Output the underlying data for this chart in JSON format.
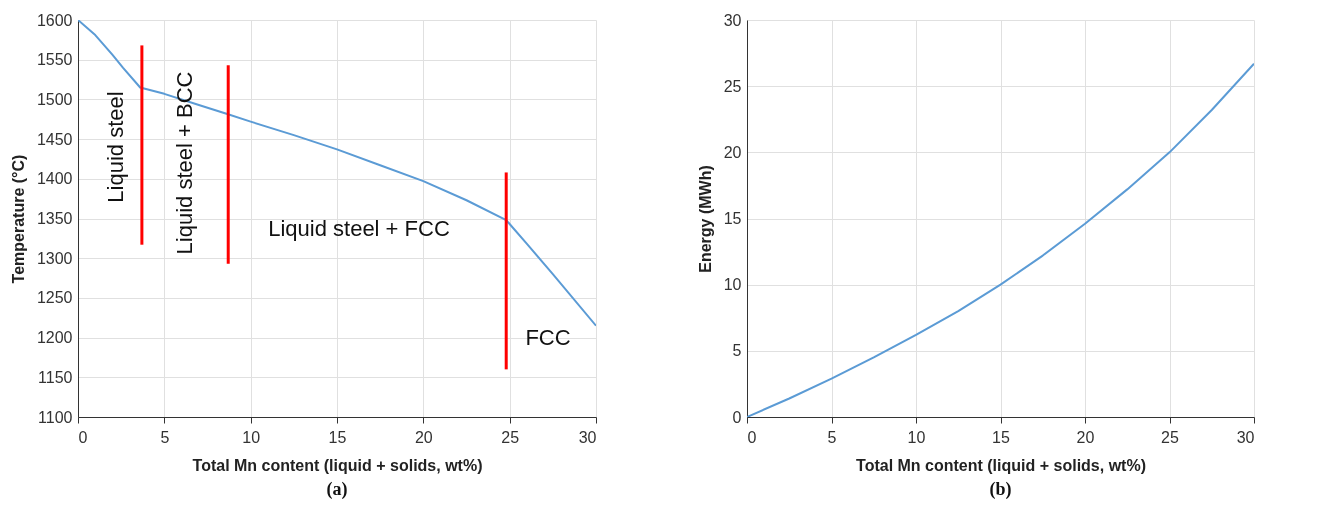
{
  "chart_data": [
    {
      "type": "line",
      "title": "(a)",
      "xlabel": "Total Mn content (liquid + solids, wt%)",
      "ylabel": "Temperature (°C)",
      "xlim": [
        0,
        30
      ],
      "xticks": [
        0,
        5,
        10,
        15,
        20,
        25,
        30
      ],
      "ylim": [
        1100,
        1600
      ],
      "yticks": [
        1100,
        1150,
        1200,
        1250,
        1300,
        1350,
        1400,
        1450,
        1500,
        1550,
        1600
      ],
      "grid": true,
      "series": [
        {
          "color": "#5b9bd5",
          "x": [
            0,
            1,
            2,
            2.6,
            3.6,
            5,
            7,
            8.6,
            10,
            12.5,
            15,
            17.5,
            20,
            22.5,
            24.8,
            26,
            27.5,
            30
          ],
          "values": [
            1600,
            1581,
            1556,
            1540,
            1515,
            1507,
            1493,
            1482,
            1472,
            1455,
            1437,
            1417,
            1397,
            1373,
            1348,
            1318,
            1280,
            1215
          ]
        },
        {
          "color": "#ff0000",
          "x": [
            3.7,
            3.7
          ],
          "values": [
            1317,
            1568
          ]
        },
        {
          "color": "#ff0000",
          "x": [
            8.7,
            8.7
          ],
          "values": [
            1293,
            1543
          ]
        },
        {
          "color": "#ff0000",
          "x": [
            24.8,
            24.8
          ],
          "values": [
            1160,
            1408
          ]
        }
      ],
      "annotations": [
        "Liquid steel",
        "Liquid steel + BCC",
        "Liquid steel + FCC",
        "FCC"
      ]
    },
    {
      "type": "line",
      "title": "(b)",
      "xlabel": "Total Mn content (liquid + solids, wt%)",
      "ylabel": "Energy (MWh)",
      "xlim": [
        0,
        30
      ],
      "xticks": [
        0,
        5,
        10,
        15,
        20,
        25,
        30
      ],
      "ylim": [
        0,
        30
      ],
      "yticks": [
        0,
        5,
        10,
        15,
        20,
        25,
        30
      ],
      "grid": true,
      "series": [
        {
          "color": "#5b9bd5",
          "x": [
            0,
            2.5,
            5,
            7.5,
            10,
            12.5,
            15,
            17.5,
            20,
            22.5,
            25,
            27.5,
            30
          ],
          "values": [
            0,
            1.4,
            2.9,
            4.5,
            6.2,
            8.0,
            10.0,
            12.2,
            14.6,
            17.2,
            20.0,
            23.2,
            26.7
          ]
        }
      ]
    }
  ]
}
